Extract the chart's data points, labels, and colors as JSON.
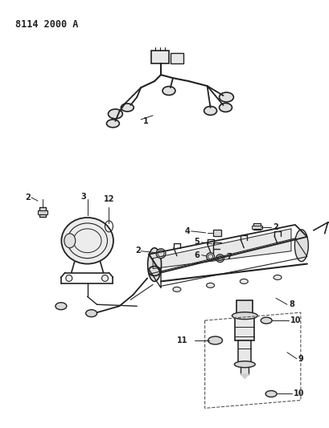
{
  "title": "8114 2000 A",
  "bg": "#ffffff",
  "lc": "#222222",
  "fig_w": 4.1,
  "fig_h": 5.33,
  "dpi": 100
}
